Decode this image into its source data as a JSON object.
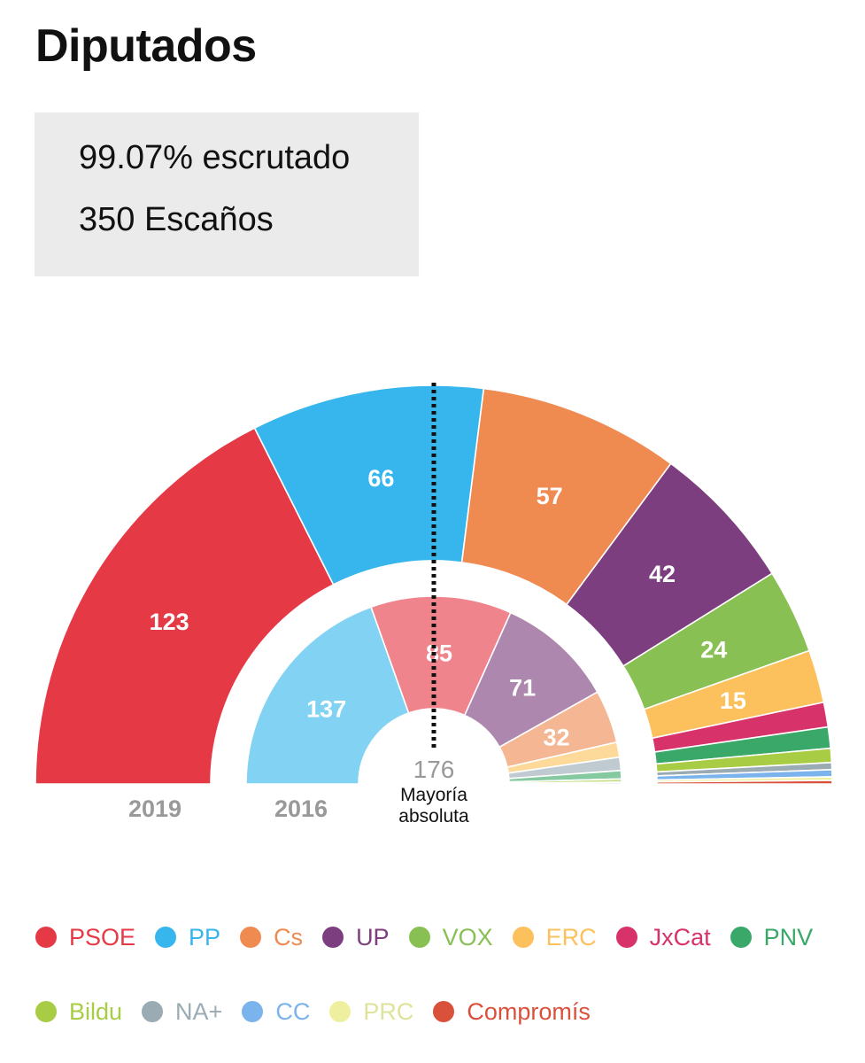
{
  "header": {
    "title": "Diputados"
  },
  "stats": {
    "counted": "99.07% escrutado",
    "seats": "350 Escaños"
  },
  "colors": {
    "PSOE": "#e63946",
    "PP": "#36b6ed",
    "Cs": "#ef8a51",
    "UP": "#7c3e7e",
    "VOX": "#88c054",
    "ERC": "#fcc15c",
    "JxCat": "#d7326a",
    "PNV": "#3aa868",
    "Bildu": "#a8cc44",
    "NA+": "#9aabb4",
    "CC": "#7bb3ec",
    "PRC": "#eef0a0",
    "Compromís": "#d9503b"
  },
  "chart_data": {
    "type": "semicircle-parliament",
    "total_seats": 350,
    "majority": {
      "value": "176",
      "label_line1": "Mayoría",
      "label_line2": "absoluta"
    },
    "series": [
      {
        "name": "2019",
        "seats": [
          {
            "party": "PSOE",
            "seats": 123,
            "label": "123"
          },
          {
            "party": "PP",
            "seats": 66,
            "label": "66"
          },
          {
            "party": "Cs",
            "seats": 57,
            "label": "57"
          },
          {
            "party": "UP",
            "seats": 42,
            "label": "42"
          },
          {
            "party": "VOX",
            "seats": 24,
            "label": "24"
          },
          {
            "party": "ERC",
            "seats": 15,
            "label": "15"
          },
          {
            "party": "JxCat",
            "seats": 7,
            "label": ""
          },
          {
            "party": "PNV",
            "seats": 6,
            "label": ""
          },
          {
            "party": "Bildu",
            "seats": 4,
            "label": ""
          },
          {
            "party": "NA+",
            "seats": 2,
            "label": ""
          },
          {
            "party": "CC",
            "seats": 2,
            "label": ""
          },
          {
            "party": "PRC",
            "seats": 1,
            "label": ""
          },
          {
            "party": "Compromís",
            "seats": 1,
            "label": ""
          }
        ]
      },
      {
        "name": "2016",
        "seats": [
          {
            "party": "PP",
            "seats": 137,
            "label": "137"
          },
          {
            "party": "PSOE",
            "seats": 85,
            "label": "85"
          },
          {
            "party": "UP",
            "seats": 71,
            "label": "71"
          },
          {
            "party": "Cs",
            "seats": 32,
            "label": "32"
          },
          {
            "party": "ERC",
            "seats": 9,
            "label": ""
          },
          {
            "party": "NA+",
            "seats": 8,
            "label": ""
          },
          {
            "party": "PNV",
            "seats": 5,
            "label": ""
          },
          {
            "party": "Bildu",
            "seats": 2,
            "label": ""
          },
          {
            "party": "CC",
            "seats": 1,
            "label": ""
          }
        ]
      }
    ],
    "legend": [
      "PSOE",
      "PP",
      "Cs",
      "UP",
      "VOX",
      "ERC",
      "JxCat",
      "PNV",
      "Bildu",
      "NA+",
      "CC",
      "PRC",
      "Compromís"
    ]
  }
}
